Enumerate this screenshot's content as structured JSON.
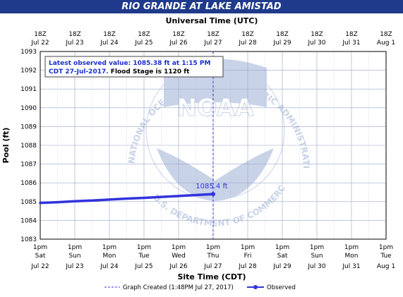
{
  "chart_data": {
    "type": "line",
    "title": "RIO GRANDE AT LAKE AMISTAD",
    "top_axis_title": "Universal Time (UTC)",
    "top_ticks": [
      {
        "time": "18Z",
        "date": "Jul 22"
      },
      {
        "time": "18Z",
        "date": "Jul 23"
      },
      {
        "time": "18Z",
        "date": "Jul 24"
      },
      {
        "time": "18Z",
        "date": "Jul 25"
      },
      {
        "time": "18Z",
        "date": "Jul 26"
      },
      {
        "time": "18Z",
        "date": "Jul 27"
      },
      {
        "time": "18Z",
        "date": "Jul 28"
      },
      {
        "time": "18Z",
        "date": "Jul 29"
      },
      {
        "time": "18Z",
        "date": "Jul 30"
      },
      {
        "time": "18Z",
        "date": "Jul 31"
      },
      {
        "time": "18Z",
        "date": "Aug 1"
      }
    ],
    "xlabel": "Site Time (CDT)",
    "bottom_ticks": [
      {
        "time": "1pm",
        "day": "Sat",
        "date": "Jul 22"
      },
      {
        "time": "1pm",
        "day": "Sun",
        "date": "Jul 23"
      },
      {
        "time": "1pm",
        "day": "Mon",
        "date": "Jul 24"
      },
      {
        "time": "1pm",
        "day": "Tue",
        "date": "Jul 25"
      },
      {
        "time": "1pm",
        "day": "Wed",
        "date": "Jul 26"
      },
      {
        "time": "1pm",
        "day": "Thu",
        "date": "Jul 27"
      },
      {
        "time": "1pm",
        "day": "Fri",
        "date": "Jul 28"
      },
      {
        "time": "1pm",
        "day": "Sat",
        "date": "Jul 29"
      },
      {
        "time": "1pm",
        "day": "Sun",
        "date": "Jul 30"
      },
      {
        "time": "1pm",
        "day": "Mon",
        "date": "Jul 31"
      },
      {
        "time": "1pm",
        "day": "Tue",
        "date": "Aug 1"
      }
    ],
    "ylabel": "Pool (ft)",
    "ylim": [
      1083,
      1093
    ],
    "yticks": [
      1083,
      1084,
      1085,
      1086,
      1087,
      1088,
      1089,
      1090,
      1091,
      1092,
      1093
    ],
    "xlim_days": [
      0,
      10
    ],
    "series": [
      {
        "name": "Observed",
        "color": "#3333dd",
        "x_days": [
          0,
          0.5,
          1,
          1.5,
          2,
          2.5,
          3,
          3.5,
          4,
          4.5,
          5
        ],
        "y": [
          1084.93,
          1084.97,
          1085.02,
          1085.06,
          1085.11,
          1085.16,
          1085.2,
          1085.25,
          1085.3,
          1085.35,
          1085.4
        ]
      }
    ],
    "created_line_x_days": 5,
    "last_value_label": "1085.4 ft",
    "info_box": {
      "line1": "Latest observed value: 1085.38 ft at 1:15 PM",
      "line2_date": "CDT 27-Jul-2017.",
      "line2_rest": " Flood Stage is 1120 ft"
    },
    "legend": {
      "created": "Graph Created (1:48PM Jul 27, 2017)",
      "observed": "Observed"
    },
    "watermark": {
      "logo_text": "NOAA",
      "ring_text": "NATIONAL OCEANIC AND ATMOSPHERIC ADMINISTRATION",
      "bottom_text": "U.S. DEPARTMENT OF COMMERCE"
    },
    "colors": {
      "title_bar": "#1f3a8a",
      "series": "#3333dd",
      "grid": "#9aa6c8",
      "watermark": "#c9d3e8",
      "info_text": "#1a2ecc"
    },
    "grid": true
  }
}
